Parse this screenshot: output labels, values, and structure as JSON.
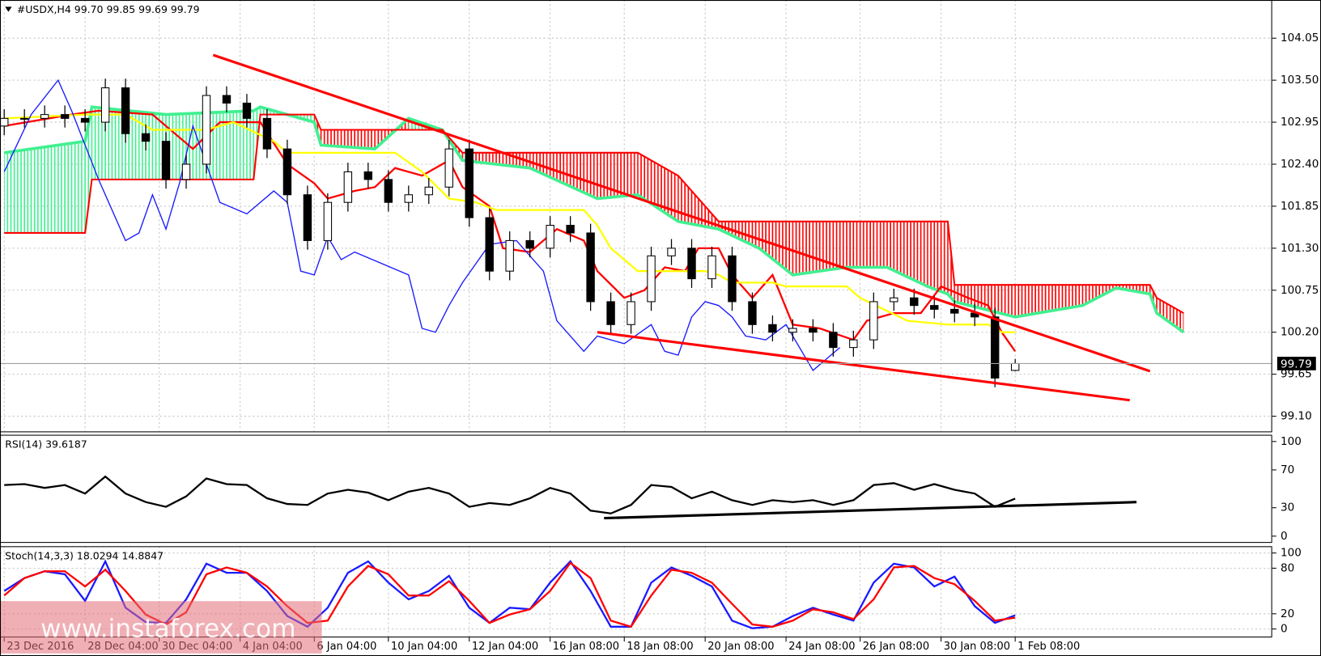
{
  "chart_data": [
    {
      "type": "candlestick",
      "title": "#USDX,H4  99.70 99.85 99.69 99.79",
      "x": [
        0,
        3,
        6,
        9,
        12,
        15,
        18,
        21,
        24,
        27,
        30,
        33,
        36,
        39,
        42,
        45,
        48,
        51,
        54,
        57,
        60,
        63,
        66,
        69,
        72,
        75,
        78,
        81,
        84,
        87,
        90,
        93,
        96,
        99,
        102,
        105,
        108,
        111,
        114,
        117,
        120,
        123,
        126,
        129,
        132,
        135,
        138,
        141,
        144,
        147,
        150
      ],
      "open": [
        102.9,
        103,
        103,
        103.05,
        103,
        102.95,
        103.4,
        102.8,
        102.7,
        102.2,
        102.4,
        103.3,
        103.2,
        103,
        102.6,
        102,
        101.4,
        101.9,
        102.3,
        102.2,
        101.9,
        102,
        102.1,
        102.6,
        101.7,
        101,
        101.4,
        101.3,
        101.6,
        101.5,
        100.6,
        100.3,
        100.6,
        101.2,
        101.3,
        100.9,
        101.2,
        100.6,
        100.3,
        100.2,
        100.25,
        100.2,
        100,
        100.1,
        100.6,
        100.65,
        100.55,
        100.5,
        100.45,
        100.4,
        99.7
      ],
      "high": [
        103.12,
        103.12,
        103.17,
        103.17,
        103.12,
        103.52,
        103.52,
        102.92,
        102.82,
        102.52,
        103.42,
        103.42,
        103.32,
        103.12,
        102.72,
        102.12,
        102.02,
        102.42,
        102.42,
        102.32,
        102.12,
        102.22,
        102.72,
        102.72,
        101.82,
        101.52,
        101.52,
        101.72,
        101.72,
        101.62,
        100.72,
        100.72,
        101.32,
        101.42,
        101.42,
        101.32,
        101.32,
        100.72,
        100.42,
        100.37,
        100.37,
        100.32,
        100.22,
        100.72,
        100.77,
        100.77,
        100.67,
        100.62,
        100.57,
        100.52,
        99.85
      ],
      "low": [
        102.78,
        102.88,
        102.88,
        102.88,
        102.83,
        102.83,
        102.68,
        102.58,
        102.08,
        102.08,
        102.28,
        103.08,
        102.88,
        102.48,
        101.88,
        101.28,
        101.28,
        101.78,
        102.08,
        101.78,
        101.78,
        101.88,
        101.98,
        101.58,
        100.88,
        100.88,
        101.18,
        101.18,
        101.38,
        100.48,
        100.18,
        100.18,
        100.48,
        101.08,
        100.78,
        100.78,
        100.48,
        100.18,
        100.08,
        100.08,
        100.08,
        99.88,
        99.88,
        99.98,
        100.48,
        100.43,
        100.38,
        100.33,
        100.28,
        99.48,
        99.69
      ],
      "close": [
        103,
        103,
        103.05,
        103,
        102.95,
        103.4,
        102.8,
        102.7,
        102.2,
        102.4,
        103.3,
        103.2,
        103,
        102.6,
        102,
        101.4,
        101.9,
        102.3,
        102.2,
        101.9,
        102,
        102.1,
        102.6,
        101.7,
        101,
        101.4,
        101.3,
        101.6,
        101.5,
        100.6,
        100.3,
        100.6,
        101.2,
        101.3,
        100.9,
        101.2,
        100.6,
        100.3,
        100.2,
        100.25,
        100.2,
        100,
        100.1,
        100.6,
        100.65,
        100.55,
        100.5,
        100.45,
        100.4,
        99.6,
        99.79
      ],
      "candle_colors": {
        "up": "#ffffff",
        "down": "#000000",
        "outline": "#000000"
      },
      "cloud": {
        "x": [
          0,
          12,
          13,
          24,
          37,
          38,
          46,
          47,
          55,
          60,
          65,
          68,
          78,
          88,
          94,
          100,
          106,
          112,
          117,
          125,
          131,
          137,
          140,
          141,
          150,
          160,
          165,
          170,
          171,
          175
        ],
        "a": [
          102.55,
          102.7,
          103.15,
          103.05,
          103.1,
          103.15,
          102.95,
          102.65,
          102.6,
          103.0,
          102.85,
          102.45,
          102.35,
          101.95,
          102.0,
          101.65,
          101.55,
          101.3,
          100.95,
          101.05,
          101.05,
          100.8,
          100.7,
          100.6,
          100.4,
          100.55,
          100.78,
          100.7,
          100.45,
          100.2
        ],
        "b": [
          101.5,
          101.5,
          102.2,
          102.2,
          102.2,
          103.05,
          103.05,
          102.85,
          102.85,
          102.85,
          102.85,
          102.55,
          102.55,
          102.55,
          102.55,
          102.25,
          101.65,
          101.65,
          101.65,
          101.65,
          101.65,
          101.65,
          101.65,
          100.82,
          100.82,
          100.82,
          100.82,
          100.82,
          100.65,
          100.45
        ],
        "a_color": "#40f090",
        "b_color": "#ff0000"
      },
      "series": [
        {
          "color": "#ff0000",
          "x": [
            0,
            10,
            14,
            22,
            28,
            32,
            38,
            42,
            46,
            48,
            52,
            55,
            58,
            62,
            66,
            68,
            72,
            74,
            78,
            82,
            86,
            88,
            92,
            95,
            98,
            101,
            103,
            106,
            108,
            111,
            114,
            117,
            121,
            126,
            128,
            130,
            132,
            136,
            139,
            143,
            146,
            148,
            150
          ],
          "values": [
            102.9,
            103.05,
            103.1,
            103.05,
            102.6,
            102.95,
            102.95,
            102.4,
            102.15,
            101.95,
            102.05,
            102.1,
            102.35,
            102.25,
            102.45,
            102.1,
            101.85,
            101.3,
            101.25,
            101.55,
            101.4,
            101,
            100.65,
            100.75,
            101.05,
            101,
            101.3,
            101.3,
            100.95,
            100.65,
            100.95,
            100.3,
            100.25,
            100.1,
            100.35,
            100.4,
            100.45,
            100.45,
            100.8,
            100.65,
            100.55,
            100.2,
            99.95
          ]
        },
        {
          "color": "#ffff00",
          "x": [
            0,
            12,
            18,
            22,
            30,
            34,
            40,
            42,
            58,
            62,
            66,
            70,
            73,
            86,
            88,
            90,
            94,
            104,
            106,
            108,
            114,
            116,
            125,
            127,
            134,
            140,
            146,
            148,
            150
          ],
          "values": [
            103,
            103.05,
            103.05,
            102.85,
            102.85,
            102.95,
            102.7,
            102.55,
            102.55,
            102.3,
            101.95,
            101.9,
            101.8,
            101.8,
            101.6,
            101.3,
            101,
            101,
            100.95,
            100.85,
            100.85,
            100.8,
            100.8,
            100.65,
            100.35,
            100.3,
            100.3,
            100.2,
            100.2
          ]
        },
        {
          "color": "#1a1aff",
          "x": [
            0,
            4,
            8,
            10,
            14,
            18,
            20,
            22,
            24,
            26,
            28,
            30,
            32,
            36,
            40,
            42,
            44,
            46,
            48,
            50,
            52,
            56,
            60,
            62,
            64,
            66,
            68,
            72,
            76,
            80,
            82,
            86,
            88,
            92,
            96,
            98,
            100,
            102,
            104,
            106,
            108,
            110,
            113,
            116,
            120,
            122,
            124
          ],
          "values": [
            102.3,
            103.05,
            103.5,
            103.1,
            102.2,
            101.4,
            101.5,
            102,
            101.55,
            102.15,
            102.9,
            102.4,
            101.9,
            101.75,
            102.05,
            101.9,
            101,
            100.95,
            101.45,
            101.15,
            101.25,
            101.1,
            100.95,
            100.25,
            100.2,
            100.55,
            100.85,
            101.35,
            101.4,
            101,
            100.35,
            99.95,
            100.15,
            100.05,
            100.3,
            99.95,
            99.9,
            100.4,
            100.6,
            100.55,
            100.4,
            100.15,
            100.1,
            100.3,
            99.7,
            99.85,
            100
          ]
        }
      ],
      "trendlines": [
        {
          "color": "#ff0000",
          "x": [
            31,
            170
          ],
          "values": [
            103.83,
            99.69
          ]
        },
        {
          "color": "#ff0000",
          "x": [
            88,
            167
          ],
          "values": [
            100.2,
            99.31
          ]
        }
      ],
      "last_price": 99.79,
      "xlim": [
        -0.625,
        188.125
      ],
      "ylim": [
        98.89,
        104.55
      ],
      "yticks": [
        104.05,
        {
          "value": 103.5,
          "label": "103.50"
        },
        102.95,
        {
          "value": 102.4,
          "label": "102.40"
        },
        101.85,
        {
          "value": 101.3,
          "label": "101.30"
        },
        100.75,
        {
          "value": 100.2,
          "label": "100.20"
        },
        99.65,
        {
          "value": 99.1,
          "label": "99.10"
        }
      ],
      "grid": true
    },
    {
      "type": "line",
      "title": "RSI(14) 39.6187",
      "x": [
        0,
        3,
        6,
        9,
        12,
        15,
        18,
        21,
        24,
        27,
        30,
        33,
        36,
        39,
        42,
        45,
        48,
        51,
        54,
        57,
        60,
        63,
        66,
        69,
        72,
        75,
        78,
        81,
        84,
        87,
        90,
        93,
        96,
        99,
        102,
        105,
        108,
        111,
        114,
        117,
        120,
        123,
        126,
        129,
        132,
        135,
        138,
        141,
        144,
        147,
        150
      ],
      "series": [
        {
          "color": "#000000",
          "values": [
            54,
            55,
            51,
            54,
            45,
            63,
            45,
            36,
            31,
            42,
            61,
            55,
            54,
            40,
            34,
            33,
            45,
            49,
            46,
            38,
            47,
            51,
            45,
            31,
            35,
            33,
            40,
            51,
            45,
            27,
            24,
            33,
            54,
            52,
            40,
            47,
            38,
            33,
            38,
            36,
            38,
            33,
            38,
            54,
            56,
            49,
            55,
            49,
            45,
            31,
            39.62
          ]
        }
      ],
      "trendlines": [
        {
          "color": "#000000",
          "x": [
            89,
            168
          ],
          "values": [
            19,
            36
          ]
        }
      ],
      "xlim": [
        -0.625,
        188.125
      ],
      "ylim": [
        -7.1,
        107.1
      ],
      "yticks": [
        100,
        70,
        30,
        0
      ],
      "grid": false
    },
    {
      "type": "line",
      "title": "Stoch(14,3,3) 18.0294 14.8847",
      "x": [
        0,
        3,
        6,
        9,
        12,
        15,
        18,
        21,
        24,
        27,
        30,
        33,
        36,
        39,
        42,
        45,
        48,
        51,
        54,
        57,
        60,
        63,
        66,
        69,
        72,
        75,
        78,
        81,
        84,
        87,
        90,
        93,
        96,
        99,
        102,
        105,
        108,
        111,
        114,
        117,
        120,
        123,
        126,
        129,
        132,
        135,
        138,
        141,
        144,
        147,
        150
      ],
      "series": [
        {
          "color": "#1a1aff",
          "values": [
            50,
            67,
            76,
            72,
            37,
            89,
            28,
            9,
            8,
            39,
            86,
            74,
            74,
            50,
            17,
            3,
            28,
            74,
            89,
            61,
            39,
            50,
            70,
            28,
            8,
            28,
            26,
            61,
            89,
            50,
            3,
            3,
            61,
            81,
            70,
            56,
            11,
            1,
            3,
            17,
            28,
            19,
            11,
            61,
            86,
            81,
            56,
            69,
            30,
            8,
            18.03
          ]
        },
        {
          "color": "#ff0000",
          "values": [
            44,
            67,
            76,
            76,
            56,
            78,
            50,
            19,
            6,
            22,
            72,
            81,
            74,
            56,
            30,
            8,
            11,
            56,
            83,
            72,
            44,
            44,
            63,
            37,
            8,
            19,
            26,
            50,
            87,
            67,
            11,
            3,
            44,
            78,
            74,
            61,
            33,
            6,
            3,
            11,
            26,
            22,
            13,
            39,
            81,
            83,
            67,
            59,
            37,
            11,
            14.88
          ]
        }
      ],
      "xlim": [
        -0.625,
        188.125
      ],
      "ylim": [
        -11.1,
        108.9
      ],
      "yticks": [
        100,
        80,
        20,
        0
      ],
      "xticks": [
        {
          "value": 0,
          "label": "23 Dec 2016"
        },
        {
          "value": 12,
          "label": "28 Dec 04:00"
        },
        {
          "value": 23,
          "label": "30 Dec 04:00"
        },
        {
          "value": 35,
          "label": "4 Jan 04:00"
        },
        {
          "value": 46,
          "label": "6 Jan 04:00"
        },
        {
          "value": 57,
          "label": "10 Jan 04:00"
        },
        {
          "value": 69,
          "label": "12 Jan 04:00"
        },
        {
          "value": 81,
          "label": "16 Jan 08:00"
        },
        {
          "value": 92,
          "label": "18 Jan 08:00"
        },
        {
          "value": 104,
          "label": "20 Jan 08:00"
        },
        {
          "value": 116,
          "label": "24 Jan 08:00"
        },
        {
          "value": 127,
          "label": "26 Jan 08:00"
        },
        {
          "value": 139,
          "label": "30 Jan 08:00"
        },
        {
          "value": 150,
          "label": "1 Feb 08:00"
        }
      ],
      "grid": true,
      "watermark": "www.instaforex.com"
    }
  ]
}
